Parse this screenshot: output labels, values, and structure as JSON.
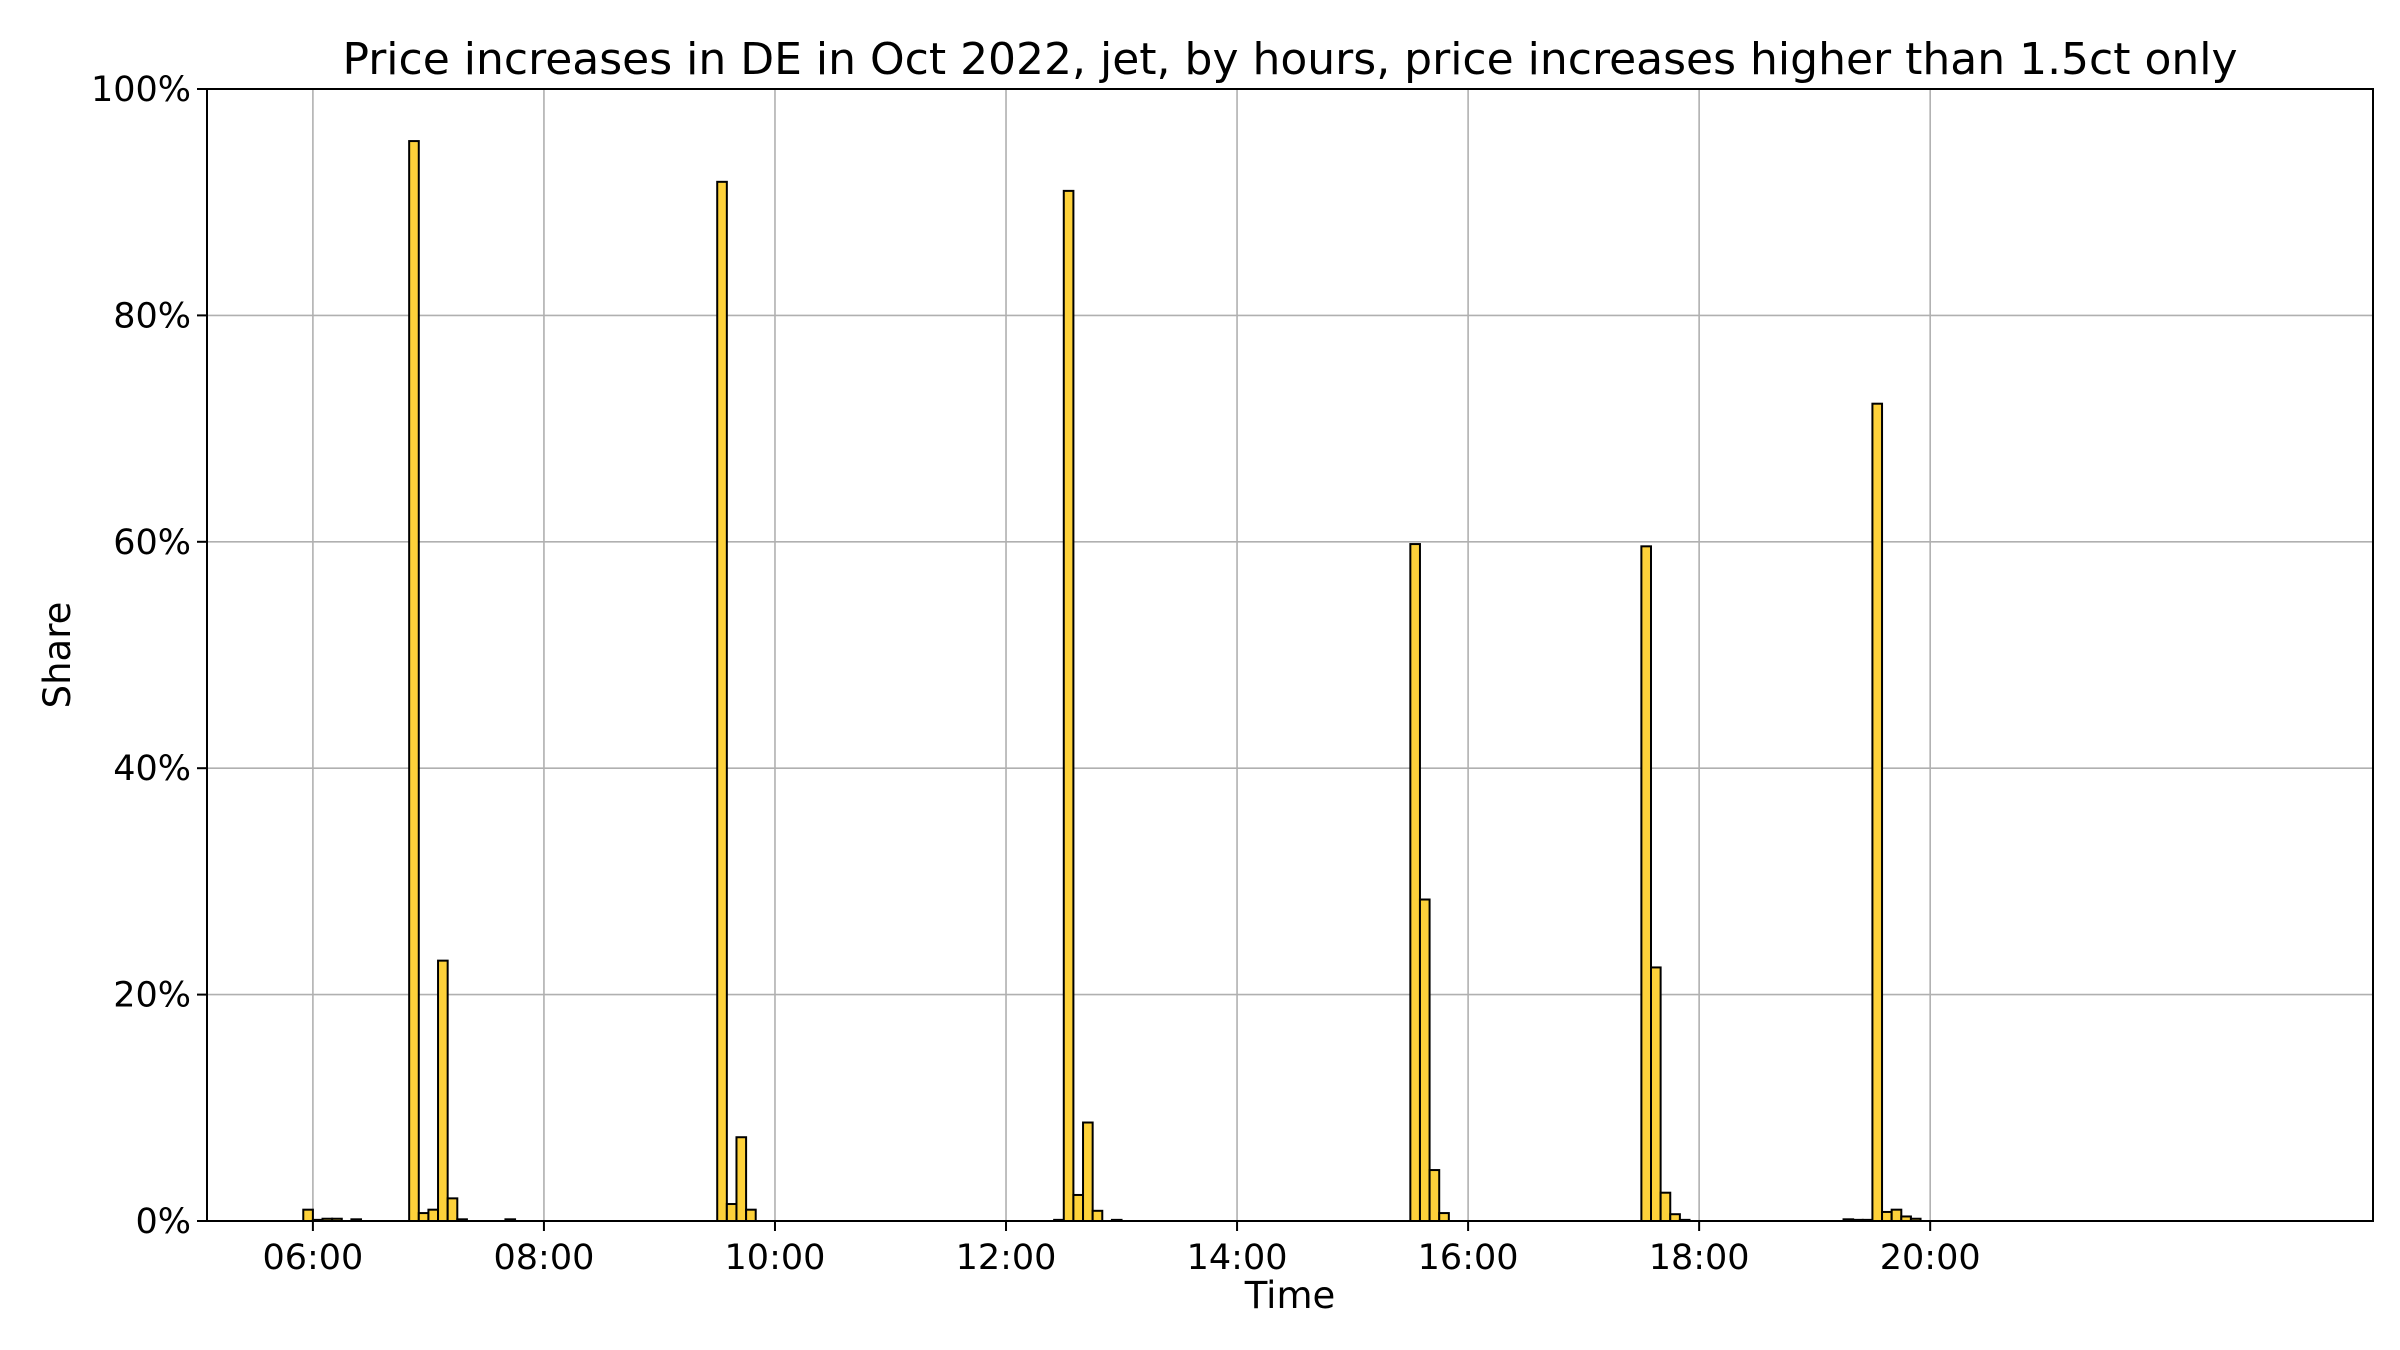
{
  "chart_data": {
    "type": "bar",
    "title": "Price increases in DE in Oct 2022, jet, by hours, price increases higher than 1.5ct only",
    "xlabel": "Time",
    "ylabel": "Share",
    "x_unit": "hours",
    "xlim": [
      5.0833,
      23.8333
    ],
    "ylim": [
      0,
      100
    ],
    "x_ticks": [
      6,
      8,
      10,
      12,
      14,
      16,
      18,
      20
    ],
    "x_tick_labels": [
      "06:00",
      "08:00",
      "10:00",
      "12:00",
      "14:00",
      "16:00",
      "18:00",
      "20:00"
    ],
    "y_ticks": [
      0,
      20,
      40,
      60,
      80,
      100
    ],
    "y_tick_labels": [
      "0%",
      "20%",
      "40%",
      "60%",
      "80%",
      "100%"
    ],
    "bin_width_hours": 0.0833,
    "grid": true,
    "bar_color": "#fdd13a",
    "edge_color": "#000000",
    "bins": [
      {
        "start": 5.9167,
        "value": 1.0
      },
      {
        "start": 6.0,
        "value": 0.1
      },
      {
        "start": 6.0833,
        "value": 0.2
      },
      {
        "start": 6.1667,
        "value": 0.2
      },
      {
        "start": 6.3333,
        "value": 0.15
      },
      {
        "start": 6.8333,
        "value": 95.4
      },
      {
        "start": 6.9167,
        "value": 0.7
      },
      {
        "start": 7.0,
        "value": 1.0
      },
      {
        "start": 7.0833,
        "value": 23.0
      },
      {
        "start": 7.1667,
        "value": 2.0
      },
      {
        "start": 7.25,
        "value": 0.15
      },
      {
        "start": 7.6667,
        "value": 0.15
      },
      {
        "start": 9.5,
        "value": 91.8
      },
      {
        "start": 9.5833,
        "value": 1.5
      },
      {
        "start": 9.6667,
        "value": 7.4
      },
      {
        "start": 9.75,
        "value": 1.0
      },
      {
        "start": 12.4167,
        "value": 0.1
      },
      {
        "start": 12.5,
        "value": 91.0
      },
      {
        "start": 12.5833,
        "value": 2.3
      },
      {
        "start": 12.6667,
        "value": 8.7
      },
      {
        "start": 12.75,
        "value": 0.9
      },
      {
        "start": 12.9167,
        "value": 0.1
      },
      {
        "start": 15.5,
        "value": 59.8
      },
      {
        "start": 15.5833,
        "value": 28.4
      },
      {
        "start": 15.6667,
        "value": 4.5
      },
      {
        "start": 15.75,
        "value": 0.7
      },
      {
        "start": 17.5,
        "value": 59.6
      },
      {
        "start": 17.5833,
        "value": 22.4
      },
      {
        "start": 17.6667,
        "value": 2.5
      },
      {
        "start": 17.75,
        "value": 0.6
      },
      {
        "start": 17.8333,
        "value": 0.1
      },
      {
        "start": 19.25,
        "value": 0.15
      },
      {
        "start": 19.3333,
        "value": 0.1
      },
      {
        "start": 19.4167,
        "value": 0.1
      },
      {
        "start": 19.5,
        "value": 72.2
      },
      {
        "start": 19.5833,
        "value": 0.8
      },
      {
        "start": 19.6667,
        "value": 1.0
      },
      {
        "start": 19.75,
        "value": 0.4
      },
      {
        "start": 19.8333,
        "value": 0.2
      }
    ]
  }
}
